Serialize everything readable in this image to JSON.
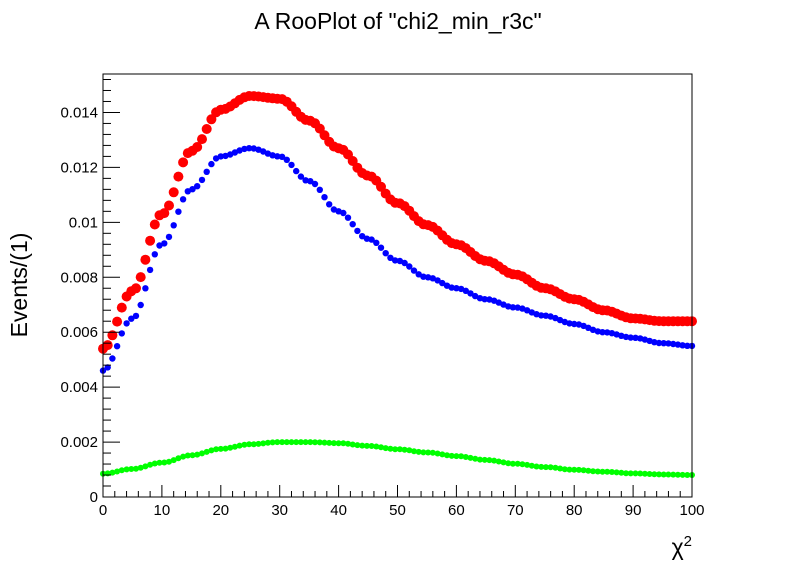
{
  "chart_data": {
    "type": "scatter",
    "title": "A RooPlot of \"chi2_min_r3c\"",
    "xlabel": "χ",
    "xlabel_superscript": "2",
    "ylabel": "Events/(1)",
    "xlim": [
      0,
      100
    ],
    "ylim": [
      0,
      0.0154
    ],
    "x_ticks": [
      0,
      10,
      20,
      30,
      40,
      50,
      60,
      70,
      80,
      90,
      100
    ],
    "x_tick_labels": [
      "0",
      "10",
      "20",
      "30",
      "40",
      "50",
      "60",
      "70",
      "80",
      "90",
      "100"
    ],
    "y_ticks": [
      0,
      0.002,
      0.004,
      0.006,
      0.008,
      0.01,
      0.012,
      0.014
    ],
    "y_tick_labels": [
      "0",
      "0.002",
      "0.004",
      "0.006",
      "0.008",
      "0.01",
      "0.012",
      "0.014"
    ],
    "grid": false,
    "legend": "none",
    "series": [
      {
        "color": "#ff0000",
        "marker_size": 5,
        "x": [
          0,
          5,
          10,
          15,
          20,
          25,
          30,
          35,
          40,
          45,
          50,
          55,
          60,
          65,
          70,
          75,
          80,
          85,
          90,
          95,
          100
        ],
        "y": [
          0.0054,
          0.0075,
          0.0103,
          0.0126,
          0.0141,
          0.0146,
          0.0145,
          0.0137,
          0.0127,
          0.0117,
          0.0107,
          0.0099,
          0.0092,
          0.0086,
          0.0081,
          0.0076,
          0.0072,
          0.0068,
          0.0065,
          0.0064,
          0.0064
        ]
      },
      {
        "color": "#0000ff",
        "marker_size": 3.2,
        "x": [
          0,
          5,
          10,
          15,
          20,
          25,
          30,
          35,
          40,
          45,
          50,
          55,
          60,
          65,
          70,
          75,
          80,
          85,
          90,
          95,
          100
        ],
        "y": [
          0.0046,
          0.0065,
          0.0092,
          0.0112,
          0.0124,
          0.0127,
          0.0124,
          0.0115,
          0.0104,
          0.0094,
          0.0086,
          0.008,
          0.0076,
          0.0072,
          0.0069,
          0.0066,
          0.0063,
          0.006,
          0.0058,
          0.0056,
          0.0055
        ]
      },
      {
        "color": "#00ff00",
        "marker_size": 3,
        "x": [
          0,
          5,
          10,
          15,
          20,
          25,
          30,
          35,
          40,
          45,
          50,
          55,
          60,
          65,
          70,
          75,
          80,
          85,
          90,
          95,
          100
        ],
        "y": [
          0.00085,
          0.00102,
          0.00125,
          0.00152,
          0.00175,
          0.00192,
          0.002,
          0.002,
          0.00196,
          0.00186,
          0.00174,
          0.00162,
          0.00149,
          0.00135,
          0.00121,
          0.00109,
          0.00099,
          0.00092,
          0.00086,
          0.00082,
          0.0008
        ]
      }
    ]
  }
}
